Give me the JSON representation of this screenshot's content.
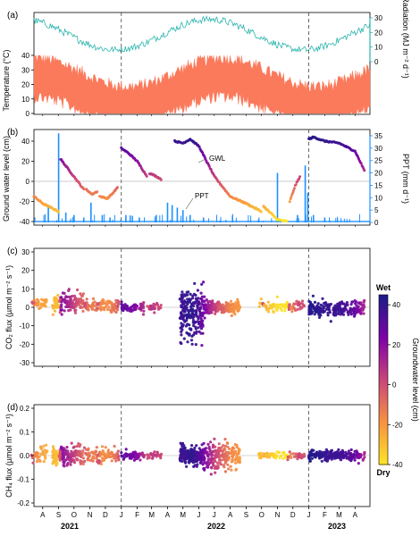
{
  "chart_data": {
    "type": "scatter",
    "x_axis": {
      "month_labels": [
        "A",
        "S",
        "O",
        "N",
        "D",
        "J",
        "F",
        "M",
        "A",
        "M",
        "J",
        "J",
        "A",
        "S",
        "O",
        "N",
        "D",
        "J",
        "F",
        "M",
        "A"
      ],
      "year_labels": [
        "2021",
        "2022",
        "2023"
      ],
      "dashed_lines_at": [
        "2022-01-01",
        "2023-01-01"
      ]
    },
    "panels": [
      {
        "id": "a",
        "label": "(a)",
        "ylabel": "Temperature (°C)",
        "yticks": [
          0,
          10,
          20,
          30,
          40
        ],
        "ylabel_right": "Radiation (MJ m⁻² d⁻¹)",
        "yticks_right": [
          0,
          10,
          20,
          30
        ],
        "series": [
          {
            "name": "Radiation",
            "color": "#2bb5ad",
            "type": "line"
          },
          {
            "name": "Temperature",
            "color": "#fb7a5c",
            "type": "area"
          }
        ]
      },
      {
        "id": "b",
        "label": "(b)",
        "ylabel": "Ground water level (cm)",
        "ylim": [
          -40,
          45
        ],
        "yticks": [
          -40,
          -20,
          0,
          20,
          40
        ],
        "ylabel_right": "PPT (mm d⁻¹)",
        "yticks_right": [
          0,
          5,
          10,
          15,
          20,
          25,
          30,
          35
        ],
        "annotations": [
          "GWL",
          "PPT"
        ],
        "gwl_segments": [
          {
            "x": [
              "2021-07-15",
              "2021-08-01",
              "2021-08-20",
              "2021-09-01"
            ],
            "y": [
              -15,
              -22,
              -27,
              -30
            ]
          },
          {
            "x": [
              "2021-09-05",
              "2021-09-20",
              "2021-10-05",
              "2021-10-20"
            ],
            "y": [
              22,
              12,
              2,
              -8
            ]
          },
          {
            "x": [
              "2021-10-25",
              "2021-11-05",
              "2021-11-15"
            ],
            "y": [
              -8,
              -13,
              -10
            ]
          },
          {
            "x": [
              "2021-11-20",
              "2021-12-05",
              "2021-12-15",
              "2021-12-25"
            ],
            "y": [
              -15,
              -17,
              -12,
              -6
            ]
          },
          {
            "x": [
              "2022-01-01",
              "2022-01-15",
              "2022-02-01",
              "2022-02-20"
            ],
            "y": [
              33,
              28,
              20,
              5
            ]
          },
          {
            "x": [
              "2022-02-25",
              "2022-03-10",
              "2022-03-20"
            ],
            "y": [
              8,
              5,
              2
            ]
          },
          {
            "x": [
              "2022-04-15",
              "2022-05-01",
              "2022-05-15",
              "2022-06-01",
              "2022-07-01",
              "2022-08-01",
              "2022-09-01",
              "2022-10-01"
            ],
            "y": [
              40,
              38,
              42,
              35,
              5,
              -15,
              -22,
              -30
            ]
          },
          {
            "x": [
              "2022-10-05",
              "2022-11-01",
              "2022-11-20"
            ],
            "y": [
              -25,
              -38,
              -40
            ]
          },
          {
            "x": [
              "2022-11-25",
              "2022-12-05",
              "2022-12-15"
            ],
            "y": [
              -20,
              -5,
              5
            ]
          },
          {
            "x": [
              "2023-01-01",
              "2023-01-10",
              "2023-02-01",
              "2023-03-01",
              "2023-04-01",
              "2023-04-20"
            ],
            "y": [
              42,
              44,
              40,
              38,
              30,
              10
            ]
          }
        ],
        "ppt_events": [
          {
            "x": "2021-08-12",
            "v": 6
          },
          {
            "x": "2021-09-01",
            "v": 36
          },
          {
            "x": "2021-09-15",
            "v": 4
          },
          {
            "x": "2021-10-01",
            "v": 3
          },
          {
            "x": "2021-10-20",
            "v": 2
          },
          {
            "x": "2021-11-03",
            "v": 8
          },
          {
            "x": "2021-11-25",
            "v": 3
          },
          {
            "x": "2021-12-10",
            "v": 2
          },
          {
            "x": "2022-01-10",
            "v": 3
          },
          {
            "x": "2022-02-05",
            "v": 2
          },
          {
            "x": "2022-03-10",
            "v": 3
          },
          {
            "x": "2022-04-01",
            "v": 8
          },
          {
            "x": "2022-04-10",
            "v": 7
          },
          {
            "x": "2022-04-20",
            "v": 6
          },
          {
            "x": "2022-05-01",
            "v": 5
          },
          {
            "x": "2022-05-15",
            "v": 3
          },
          {
            "x": "2022-06-10",
            "v": 2
          },
          {
            "x": "2022-11-01",
            "v": 20
          },
          {
            "x": "2022-12-10",
            "v": 3
          },
          {
            "x": "2022-12-25",
            "v": 23
          },
          {
            "x": "2022-12-30",
            "v": 12
          },
          {
            "x": "2023-01-10",
            "v": 3
          },
          {
            "x": "2023-02-01",
            "v": 2
          }
        ]
      },
      {
        "id": "c",
        "label": "(c)",
        "ylabel": "CO₂ flux (µmol m⁻² s⁻¹)",
        "ylim": [
          -30,
          30
        ],
        "yticks": [
          -30,
          -20,
          -10,
          0,
          10,
          20,
          30
        ],
        "clusters": [
          {
            "start": "2021-07-10",
            "end": "2021-08-10",
            "yc": 2,
            "spread": 4,
            "count": 40
          },
          {
            "start": "2021-08-20",
            "end": "2021-10-20",
            "yc": 2,
            "spread": 8,
            "count": 150
          },
          {
            "start": "2021-10-20",
            "end": "2021-12-28",
            "yc": 1,
            "spread": 5,
            "count": 110
          },
          {
            "start": "2022-01-01",
            "end": "2022-02-15",
            "yc": 0,
            "spread": 4,
            "count": 60
          },
          {
            "start": "2022-02-20",
            "end": "2022-03-20",
            "yc": 0,
            "spread": 3,
            "count": 30
          },
          {
            "start": "2022-04-25",
            "end": "2022-06-10",
            "yc": -3,
            "spread": 20,
            "count": 220
          },
          {
            "start": "2022-06-10",
            "end": "2022-08-20",
            "yc": 0,
            "spread": 5,
            "count": 200
          },
          {
            "start": "2022-09-25",
            "end": "2022-12-25",
            "yc": 1,
            "spread": 4,
            "count": 90
          },
          {
            "start": "2023-01-01",
            "end": "2023-04-20",
            "yc": -1,
            "spread": 6,
            "count": 230
          }
        ],
        "colorbar": {
          "label": "Groundwater level (cm)",
          "ticks": [
            -40,
            -20,
            0,
            20,
            40
          ],
          "top_label": "Wet",
          "bottom_label": "Dry"
        }
      },
      {
        "id": "d",
        "label": "(d)",
        "ylabel": "CH₄ flux (µmol m⁻² s⁻¹)",
        "ylim": [
          -0.2,
          0.2
        ],
        "yticks": [
          -0.2,
          -0.1,
          0.0,
          0.1,
          0.2
        ],
        "clusters": [
          {
            "start": "2021-07-10",
            "end": "2021-08-10",
            "yc": 0,
            "spread": 0.05,
            "count": 40
          },
          {
            "start": "2021-08-20",
            "end": "2021-10-20",
            "yc": 0,
            "spread": 0.06,
            "count": 150
          },
          {
            "start": "2021-10-20",
            "end": "2021-12-28",
            "yc": 0,
            "spread": 0.04,
            "count": 110
          },
          {
            "start": "2022-01-01",
            "end": "2022-02-15",
            "yc": 0,
            "spread": 0.03,
            "count": 60
          },
          {
            "start": "2022-02-20",
            "end": "2022-03-20",
            "yc": 0,
            "spread": 0.03,
            "count": 30
          },
          {
            "start": "2022-04-25",
            "end": "2022-06-10",
            "yc": 0,
            "spread": 0.05,
            "count": 220
          },
          {
            "start": "2022-06-10",
            "end": "2022-08-20",
            "yc": 0,
            "spread": 0.08,
            "count": 200
          },
          {
            "start": "2022-09-25",
            "end": "2022-12-25",
            "yc": 0,
            "spread": 0.02,
            "count": 90
          },
          {
            "start": "2023-01-01",
            "end": "2023-04-20",
            "yc": 0,
            "spread": 0.03,
            "count": 230
          }
        ]
      }
    ]
  }
}
